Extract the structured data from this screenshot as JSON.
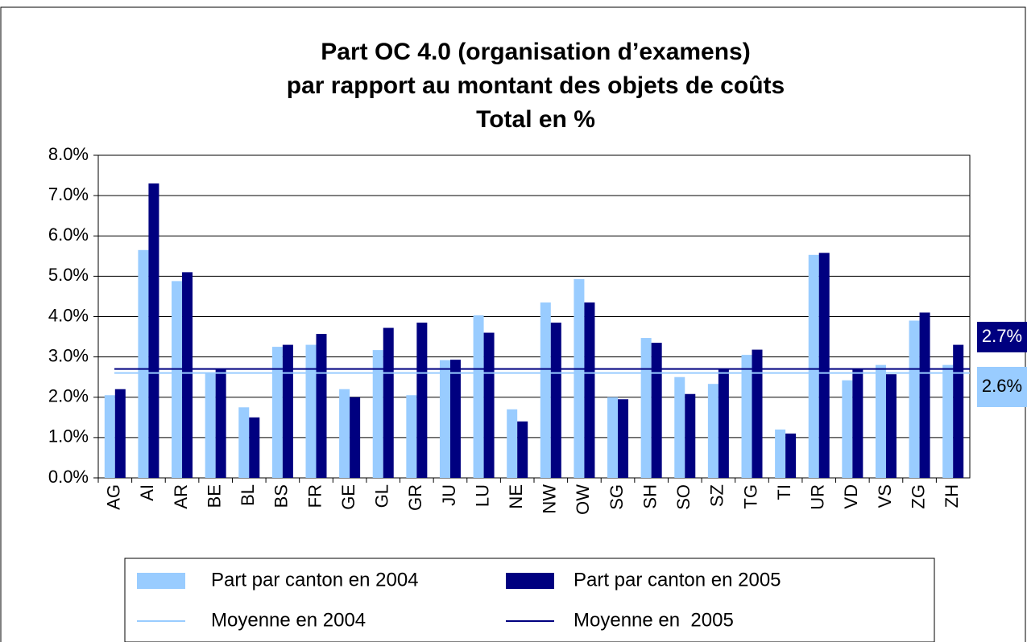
{
  "chart_data": {
    "type": "bar",
    "title": [
      "Part OC 4.0 (organisation d’examens)",
      "par rapport au montant des objets de coûts",
      "Total en %"
    ],
    "categories": [
      "AG",
      "AI",
      "AR",
      "BE",
      "BL",
      "BS",
      "FR",
      "GE",
      "GL",
      "GR",
      "JU",
      "LU",
      "NE",
      "NW",
      "OW",
      "SG",
      "SH",
      "SO",
      "SZ",
      "TG",
      "TI",
      "UR",
      "VD",
      "VS",
      "ZG",
      "ZH"
    ],
    "series": [
      {
        "name": "Part par canton en 2004",
        "color": "#99ccff",
        "values": [
          2.05,
          5.65,
          4.88,
          2.6,
          1.75,
          3.25,
          3.3,
          2.2,
          3.17,
          2.05,
          2.92,
          4.03,
          1.7,
          4.35,
          4.93,
          2.0,
          3.47,
          2.5,
          2.33,
          3.05,
          1.2,
          5.53,
          2.42,
          2.8,
          3.9,
          2.8
        ]
      },
      {
        "name": "Part par canton en 2005",
        "color": "#000080",
        "values": [
          2.2,
          7.3,
          5.1,
          2.7,
          1.5,
          3.3,
          3.57,
          2.0,
          3.72,
          3.85,
          2.93,
          3.6,
          1.4,
          3.85,
          4.35,
          1.95,
          3.35,
          2.08,
          2.7,
          3.18,
          1.1,
          5.58,
          2.7,
          2.57,
          4.1,
          3.3
        ]
      }
    ],
    "lines": [
      {
        "name": "Moyenne en 2004",
        "color": "#99ccff",
        "value": 2.6,
        "value_label": "2.6%"
      },
      {
        "name": "Moyenne en  2005",
        "color": "#000080",
        "value": 2.7,
        "value_label": "2.7%"
      }
    ],
    "ylim": [
      0,
      8
    ],
    "yticks": [
      {
        "value": 0,
        "label": "0.0%"
      },
      {
        "value": 1,
        "label": "1.0%"
      },
      {
        "value": 2,
        "label": "2.0%"
      },
      {
        "value": 3,
        "label": "3.0%"
      },
      {
        "value": 4,
        "label": "4.0%"
      },
      {
        "value": 5,
        "label": "5.0%"
      },
      {
        "value": 6,
        "label": "6.0%"
      },
      {
        "value": 7,
        "label": "7.0%"
      },
      {
        "value": 8,
        "label": "8.0%"
      }
    ],
    "grid": true
  }
}
